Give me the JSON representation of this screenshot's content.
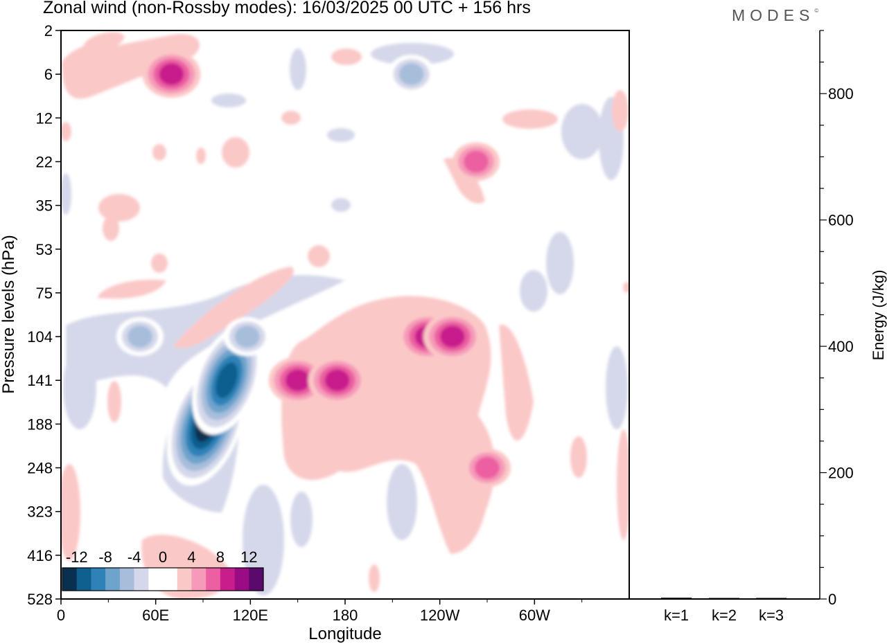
{
  "title": "Zonal wind (non-Rossby modes):  16/03/2025  00 UTC  + 156 hrs",
  "brand": "MODES",
  "brand_mark": "©",
  "chart_data": [
    {
      "type": "heatmap",
      "xlabel": "Longitude",
      "ylabel": "Pressure levels (hPa)",
      "x_ticks": [
        "0",
        "60E",
        "120E",
        "180",
        "120W",
        "60W"
      ],
      "x_tick_degrees": [
        0,
        60,
        120,
        180,
        240,
        300
      ],
      "xlim": [
        0,
        360
      ],
      "y_ticks": [
        "2",
        "6",
        "12",
        "22",
        "35",
        "53",
        "75",
        "104",
        "141",
        "188",
        "248",
        "323",
        "416",
        "528"
      ],
      "colorbar": {
        "tick_labels": [
          "-12",
          "-8",
          "-4",
          "0",
          "4",
          "8",
          "12"
        ],
        "tick_values": [
          -12,
          -8,
          -4,
          0,
          4,
          8,
          12
        ],
        "colors": [
          "#0a3050",
          "#0f5f8f",
          "#2f82b8",
          "#6ea3cc",
          "#a7bedb",
          "#d5d8ea",
          "#ffffff",
          "#ffffff",
          "#fbc8c8",
          "#f59ab8",
          "#ec5fa1",
          "#c81e8c",
          "#9a0c84",
          "#5a0a6b"
        ]
      },
      "features": [
        {
          "lon": 92,
          "level": "188",
          "value": -13,
          "sign": "negative"
        },
        {
          "lon": 105,
          "level": "141",
          "value": -12,
          "sign": "negative"
        },
        {
          "lon": 50,
          "level": "104",
          "value": -6,
          "sign": "negative"
        },
        {
          "lon": 118,
          "level": "104",
          "value": -5,
          "sign": "negative"
        },
        {
          "lon": 222,
          "level": "6",
          "value": -6,
          "sign": "negative"
        },
        {
          "lon": 150,
          "level": "141",
          "value": 7,
          "sign": "positive"
        },
        {
          "lon": 175,
          "level": "141",
          "value": 7,
          "sign": "positive"
        },
        {
          "lon": 232,
          "level": "104",
          "value": 8,
          "sign": "positive"
        },
        {
          "lon": 248,
          "level": "104",
          "value": 7,
          "sign": "positive"
        },
        {
          "lon": 270,
          "level": "248",
          "value": 6,
          "sign": "positive"
        },
        {
          "lon": 70,
          "level": "6",
          "value": 8,
          "sign": "positive"
        },
        {
          "lon": 263,
          "level": "22",
          "value": 5,
          "sign": "positive"
        }
      ]
    },
    {
      "type": "bar",
      "categories": [
        "k=1",
        "k=2",
        "k=3"
      ],
      "values": [
        2,
        1,
        1
      ],
      "ylabel": "Energy (J/kg)",
      "ylim": [
        0,
        900
      ],
      "y_ticks": [
        0,
        200,
        400,
        600,
        800
      ],
      "y_minor_step": 50
    }
  ]
}
